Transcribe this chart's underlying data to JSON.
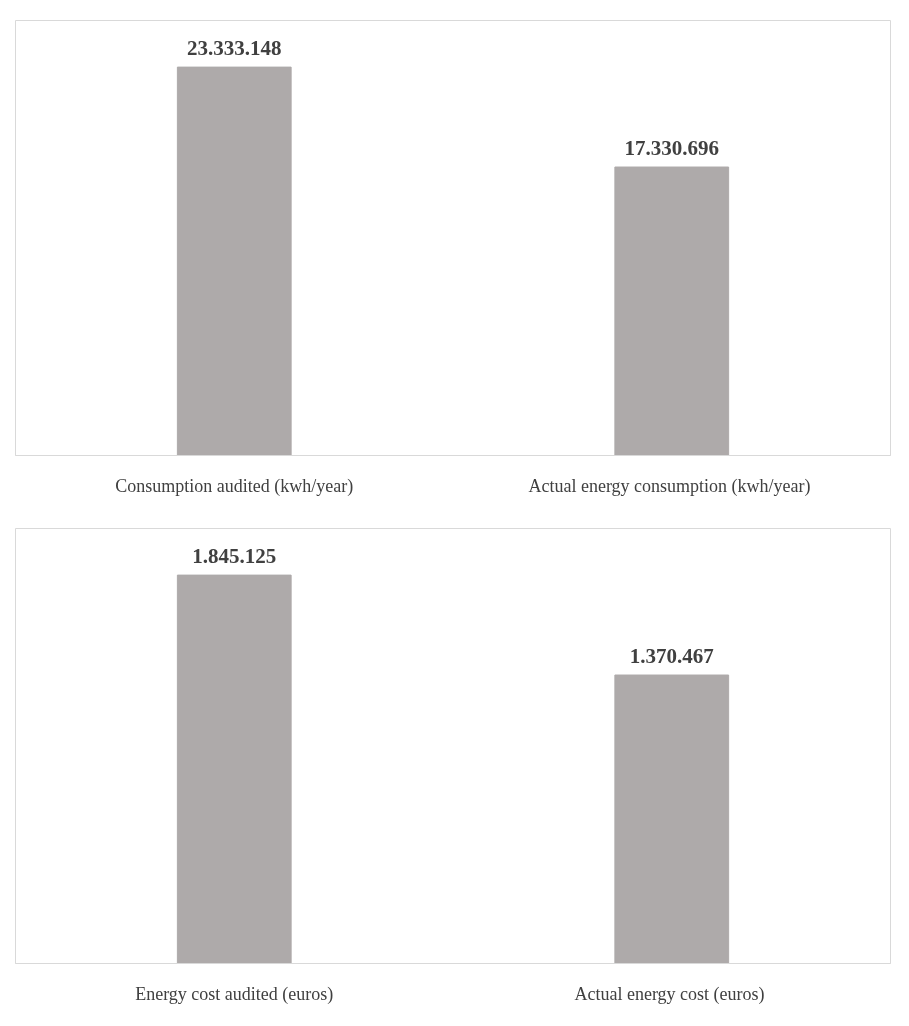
{
  "chart_data": [
    {
      "type": "bar",
      "categories": [
        "Consumption audited (kwh/year)",
        "Actual energy consumption  (kwh/year)"
      ],
      "values": [
        23333148,
        17330696
      ],
      "value_labels": [
        "23.333.148",
        "17.330.696"
      ],
      "color": "#aeaaaa",
      "grid": false,
      "tick_labels": "x"
    },
    {
      "type": "bar",
      "categories": [
        "Energy cost audited (euros)",
        "Actual energy cost  (euros)"
      ],
      "values": [
        1845125,
        1370467
      ],
      "value_labels": [
        "1.845.125",
        "1.370.467"
      ],
      "color": "#aeaaaa",
      "grid": false,
      "tick_labels": "x"
    }
  ]
}
